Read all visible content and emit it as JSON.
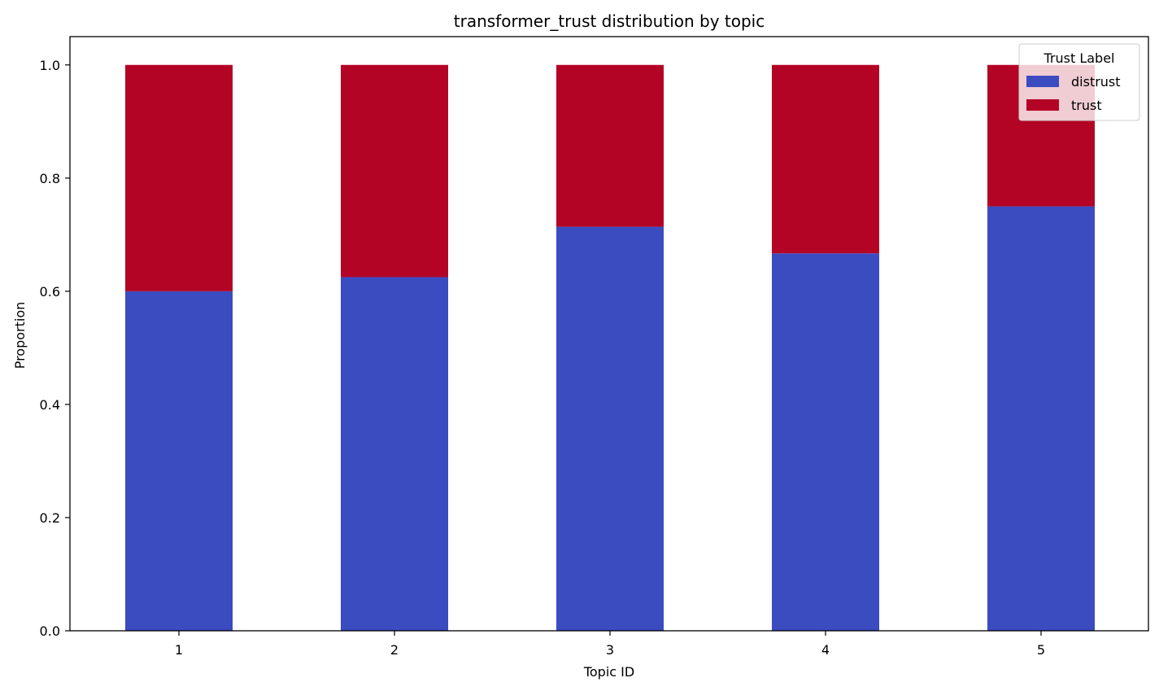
{
  "chart_data": {
    "type": "bar",
    "stacked": true,
    "title": "transformer_trust distribution by topic",
    "xlabel": "Topic ID",
    "ylabel": "Proportion",
    "categories": [
      "1",
      "2",
      "3",
      "4",
      "5"
    ],
    "ylim": [
      0,
      1.05
    ],
    "yticks": [
      0.0,
      0.2,
      0.4,
      0.6,
      0.8,
      1.0
    ],
    "ytick_labels": [
      "0.0",
      "0.2",
      "0.4",
      "0.6",
      "0.8",
      "1.0"
    ],
    "grid": false,
    "legend": {
      "title": "Trust Label",
      "placement": "top-right"
    },
    "series": [
      {
        "name": "distrust",
        "color": "#3b4cc0",
        "values": [
          0.6,
          0.625,
          0.714,
          0.667,
          0.75
        ]
      },
      {
        "name": "trust",
        "color": "#b40426",
        "values": [
          0.4,
          0.375,
          0.286,
          0.333,
          0.25
        ]
      }
    ]
  }
}
